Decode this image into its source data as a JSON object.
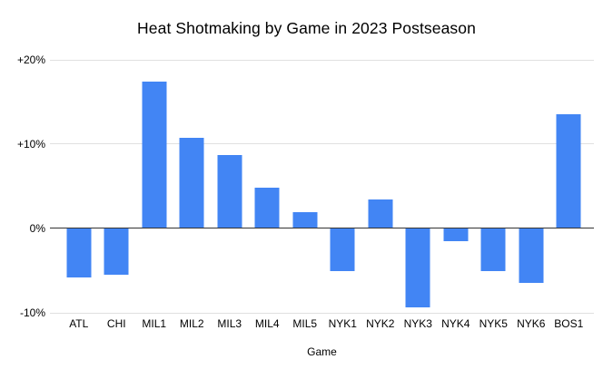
{
  "chart_data": {
    "type": "bar",
    "title": "Heat Shotmaking by Game in 2023 Postseason",
    "xlabel": "Game",
    "ylabel": "",
    "categories": [
      "ATL",
      "CHI",
      "MIL1",
      "MIL2",
      "MIL3",
      "MIL4",
      "MIL5",
      "NYK1",
      "NYK2",
      "NYK3",
      "NYK4",
      "NYK5",
      "NYK6",
      "BOS1"
    ],
    "values": [
      -5.8,
      -5.5,
      17.4,
      10.8,
      8.7,
      4.8,
      1.9,
      -5.0,
      3.4,
      -9.4,
      -1.5,
      -5.0,
      -6.5,
      13.5
    ],
    "ylim": [
      -10,
      20
    ],
    "yticks": [
      {
        "value": 20,
        "label": "+20%"
      },
      {
        "value": 10,
        "label": "+10%"
      },
      {
        "value": 0,
        "label": "0%"
      },
      {
        "value": -10,
        "label": "-10%"
      }
    ],
    "legend": "none",
    "grid": "horizontal",
    "colors": {
      "bar": "#4285f4",
      "gridline": "#e0e0e0",
      "zero_axis": "#333333",
      "text": "#000000",
      "background": "#ffffff"
    }
  }
}
